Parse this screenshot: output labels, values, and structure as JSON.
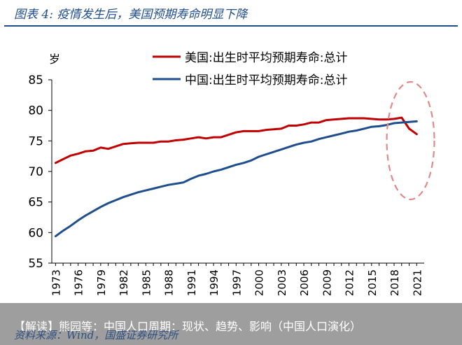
{
  "header": {
    "figure_title": "图表 4: 疫情发生后，美国预期寿命明显下降"
  },
  "banner": {
    "text": "【解读】熊园等：中国人口周期：现状、趋势、影响（中国人口演化）"
  },
  "footer": {
    "source": "资料来源：Wind，国盛证券研究所"
  },
  "chart_data": {
    "type": "line",
    "ylabel": "岁",
    "ylim": [
      55,
      85
    ],
    "yticks": [
      55,
      60,
      65,
      70,
      75,
      80,
      85
    ],
    "xlim": [
      1972.5,
      2022
    ],
    "xticks": [
      1973,
      1976,
      1979,
      1982,
      1985,
      1988,
      1991,
      1994,
      1997,
      2000,
      2003,
      2006,
      2009,
      2012,
      2015,
      2018,
      2021
    ],
    "grid": false,
    "legend_position": "top",
    "series": [
      {
        "name": "美国:出生时平均预期寿命:总计",
        "color": "#c00000",
        "x": [
          1973,
          1974,
          1975,
          1976,
          1977,
          1978,
          1979,
          1980,
          1981,
          1982,
          1983,
          1984,
          1985,
          1986,
          1987,
          1988,
          1989,
          1990,
          1991,
          1992,
          1993,
          1994,
          1995,
          1996,
          1997,
          1998,
          1999,
          2000,
          2001,
          2002,
          2003,
          2004,
          2005,
          2006,
          2007,
          2008,
          2009,
          2010,
          2011,
          2012,
          2013,
          2014,
          2015,
          2016,
          2017,
          2018,
          2019,
          2020,
          2021
        ],
        "y": [
          71.4,
          72.0,
          72.6,
          72.9,
          73.3,
          73.4,
          73.9,
          73.7,
          74.1,
          74.5,
          74.6,
          74.7,
          74.7,
          74.7,
          74.9,
          74.9,
          75.1,
          75.2,
          75.4,
          75.6,
          75.4,
          75.6,
          75.6,
          76.0,
          76.4,
          76.6,
          76.6,
          76.6,
          76.8,
          76.9,
          77.0,
          77.5,
          77.5,
          77.7,
          78.0,
          78.0,
          78.4,
          78.5,
          78.6,
          78.7,
          78.7,
          78.7,
          78.6,
          78.5,
          78.5,
          78.6,
          78.8,
          77.0,
          76.1
        ]
      },
      {
        "name": "中国:出生时平均预期寿命:总计",
        "color": "#1f4e8c",
        "x": [
          1973,
          1974,
          1975,
          1976,
          1977,
          1978,
          1979,
          1980,
          1981,
          1982,
          1983,
          1984,
          1985,
          1986,
          1987,
          1988,
          1989,
          1990,
          1991,
          1992,
          1993,
          1994,
          1995,
          1996,
          1997,
          1998,
          1999,
          2000,
          2001,
          2002,
          2003,
          2004,
          2005,
          2006,
          2007,
          2008,
          2009,
          2010,
          2011,
          2012,
          2013,
          2014,
          2015,
          2016,
          2017,
          2018,
          2019,
          2020,
          2021
        ],
        "y": [
          59.4,
          60.3,
          61.1,
          62.0,
          62.8,
          63.5,
          64.2,
          64.8,
          65.3,
          65.8,
          66.2,
          66.6,
          66.9,
          67.2,
          67.5,
          67.8,
          68.0,
          68.2,
          68.8,
          69.3,
          69.6,
          70.0,
          70.3,
          70.7,
          71.1,
          71.4,
          71.8,
          72.4,
          72.8,
          73.2,
          73.6,
          74.0,
          74.4,
          74.7,
          74.9,
          75.3,
          75.6,
          75.9,
          76.2,
          76.5,
          76.7,
          77.0,
          77.3,
          77.4,
          77.6,
          77.9,
          78.0,
          78.1,
          78.2
        ]
      }
    ],
    "annotation": {
      "type": "dashed-ellipse",
      "color": "#e08a8a",
      "highlight_years": [
        2019,
        2021
      ]
    }
  }
}
